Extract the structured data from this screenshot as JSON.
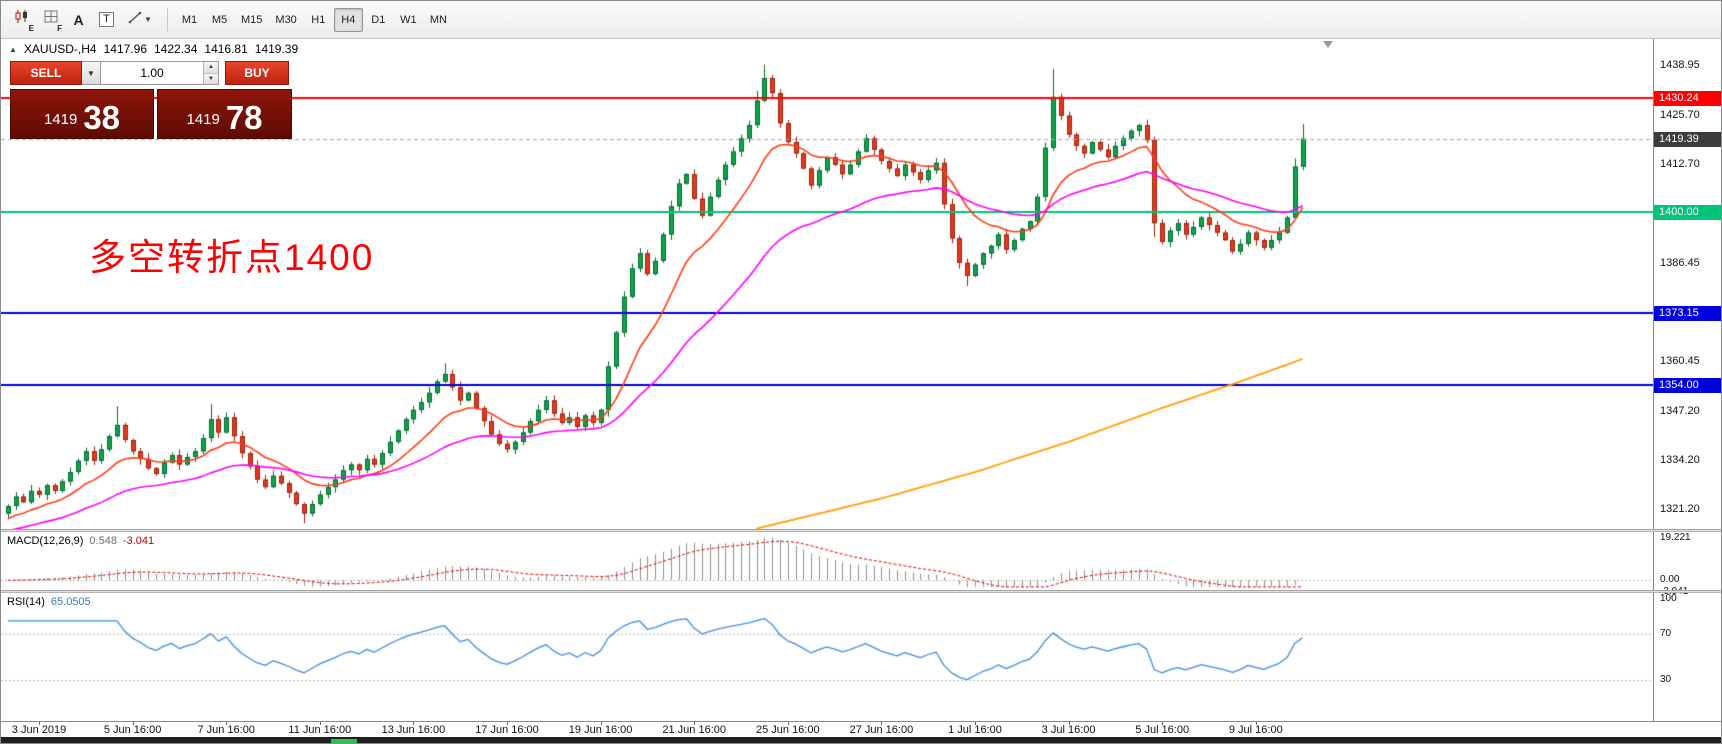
{
  "toolbar": {
    "icon_subscript_e": "E",
    "icon_subscript_f": "F",
    "label_a": "A",
    "label_t": "T",
    "timeframes": [
      "M1",
      "M5",
      "M15",
      "M30",
      "H1",
      "H4",
      "D1",
      "W1",
      "MN"
    ],
    "active_timeframe": "H4"
  },
  "chart_header": {
    "symbol": "XAUUSD-,H4",
    "open": "1417.96",
    "high": "1422.34",
    "low": "1416.81",
    "close": "1419.39"
  },
  "trade_panel": {
    "sell_label": "SELL",
    "buy_label": "BUY",
    "volume": "1.00",
    "bid_main": "1419",
    "bid_pips": "38",
    "ask_main": "1419",
    "ask_pips": "78"
  },
  "annotation": {
    "text": "多空转折点1400",
    "color": "#ff0000"
  },
  "hlines": [
    {
      "price": 1430.24,
      "label": "1430.24",
      "color": "#ff0000"
    },
    {
      "price": 1400.0,
      "label": "1400.00",
      "color": "#00c478"
    },
    {
      "price": 1373.15,
      "label": "1373.15",
      "color": "#0000dc"
    },
    {
      "price": 1354.0,
      "label": "1354.00",
      "color": "#0000dc"
    }
  ],
  "current_price": {
    "value": 1419.39,
    "label": "1419.39",
    "tag_color": "#3c3c3c"
  },
  "price_axis": {
    "ticks": [
      "1438.95",
      "1425.70",
      "1412.70",
      "1386.45",
      "1360.45",
      "1347.20",
      "1334.20",
      "1321.20"
    ]
  },
  "indicators": {
    "macd": {
      "name": "MACD(12,26,9)",
      "value_main": "0.548",
      "value_signal": "-3.041",
      "axis": [
        "19.221",
        "0.00",
        "-3.041"
      ]
    },
    "rsi": {
      "name": "RSI(14)",
      "value": "65.0505",
      "axis": [
        "100",
        "70",
        "30"
      ],
      "levels": [
        70,
        30
      ]
    }
  },
  "time_axis": {
    "labels": [
      "3 Jun 2019",
      "5 Jun 16:00",
      "7 Jun 16:00",
      "11 Jun 16:00",
      "13 Jun 16:00",
      "17 Jun 16:00",
      "19 Jun 16:00",
      "21 Jun 16:00",
      "25 Jun 16:00",
      "27 Jun 16:00",
      "1 Jul 16:00",
      "3 Jul 16:00",
      "5 Jul 16:00",
      "9 Jul 16:00"
    ]
  },
  "chart_data": {
    "type": "candlestick",
    "symbol": "XAUUSD",
    "timeframe": "H4",
    "visible_price_range": [
      1321.2,
      1438.95
    ],
    "first_open": 1320.0,
    "closes": [
      1322.0,
      1324.5,
      1323.0,
      1326.0,
      1325.0,
      1327.5,
      1326.0,
      1328.5,
      1331.0,
      1334.0,
      1336.5,
      1334.0,
      1337.0,
      1340.5,
      1343.5,
      1339.5,
      1336.5,
      1334.5,
      1332.0,
      1330.5,
      1333.5,
      1335.5,
      1333.0,
      1335.0,
      1336.5,
      1340.0,
      1345.0,
      1341.5,
      1345.5,
      1340.5,
      1336.0,
      1332.5,
      1329.0,
      1327.0,
      1330.0,
      1328.0,
      1325.5,
      1322.5,
      1320.0,
      1322.5,
      1325.0,
      1327.0,
      1329.0,
      1331.5,
      1333.0,
      1331.5,
      1334.5,
      1333.0,
      1336.0,
      1339.0,
      1342.0,
      1345.0,
      1347.5,
      1349.5,
      1352.0,
      1355.0,
      1357.0,
      1353.5,
      1350.0,
      1352.0,
      1348.0,
      1344.5,
      1341.0,
      1338.5,
      1337.0,
      1339.0,
      1341.5,
      1344.5,
      1347.5,
      1350.0,
      1346.5,
      1344.0,
      1345.5,
      1343.0,
      1346.0,
      1344.0,
      1347.5,
      1359.0,
      1368.0,
      1377.5,
      1385.0,
      1389.0,
      1383.5,
      1387.0,
      1394.0,
      1401.5,
      1407.5,
      1410.0,
      1403.5,
      1399.0,
      1404.0,
      1408.5,
      1412.5,
      1416.0,
      1419.5,
      1423.0,
      1429.5,
      1435.5,
      1431.5,
      1423.5,
      1418.5,
      1415.5,
      1411.5,
      1407.0,
      1411.0,
      1414.5,
      1412.5,
      1410.0,
      1412.5,
      1416.0,
      1419.5,
      1416.5,
      1413.5,
      1411.5,
      1409.5,
      1412.5,
      1410.5,
      1408.5,
      1411.0,
      1413.0,
      1402.0,
      1393.0,
      1386.5,
      1383.0,
      1386.0,
      1389.0,
      1391.0,
      1394.0,
      1390.0,
      1392.5,
      1395.5,
      1397.5,
      1404.0,
      1417.0,
      1430.5,
      1425.5,
      1420.5,
      1417.5,
      1415.5,
      1418.5,
      1416.5,
      1414.5,
      1417.5,
      1419.5,
      1421.5,
      1423.0,
      1419.0,
      1397.0,
      1392.0,
      1395.0,
      1397.0,
      1394.0,
      1396.0,
      1398.5,
      1396.5,
      1394.5,
      1392.5,
      1389.5,
      1391.5,
      1394.5,
      1392.5,
      1390.5,
      1392.5,
      1394.5,
      1398.5,
      1412.0,
      1419.39
    ],
    "extra_wicks": {
      "14": [
        3.5,
        0
      ],
      "26": [
        2.5,
        0
      ],
      "38": [
        0,
        2.0
      ],
      "56": [
        1.5,
        0
      ],
      "77": [
        1.0,
        1.5
      ],
      "96": [
        2.0,
        0
      ],
      "97": [
        3.0,
        0
      ],
      "123": [
        0,
        2.2
      ],
      "134": [
        6.5,
        0
      ],
      "147": [
        0,
        3.0
      ],
      "165": [
        1.5,
        0
      ],
      "166": [
        2.5,
        0
      ]
    },
    "ma_fast": {
      "period": 12,
      "seed": 1318.0,
      "color": "#ff3c16"
    },
    "ma_mid": {
      "period": 34,
      "seed": 1315.0,
      "color": "#ff00ff"
    },
    "ma_slow": {
      "color": "#ffa000",
      "anchors": [
        [
          96,
          1316
        ],
        [
          112,
          1324
        ],
        [
          124,
          1331
        ],
        [
          136,
          1339
        ],
        [
          148,
          1348
        ],
        [
          158,
          1355
        ],
        [
          166,
          1361
        ]
      ]
    },
    "candle_colors": {
      "up": "#0fa34d",
      "up_border": "#066b31",
      "down": "#e23a1f",
      "down_border": "#9c2410"
    }
  }
}
